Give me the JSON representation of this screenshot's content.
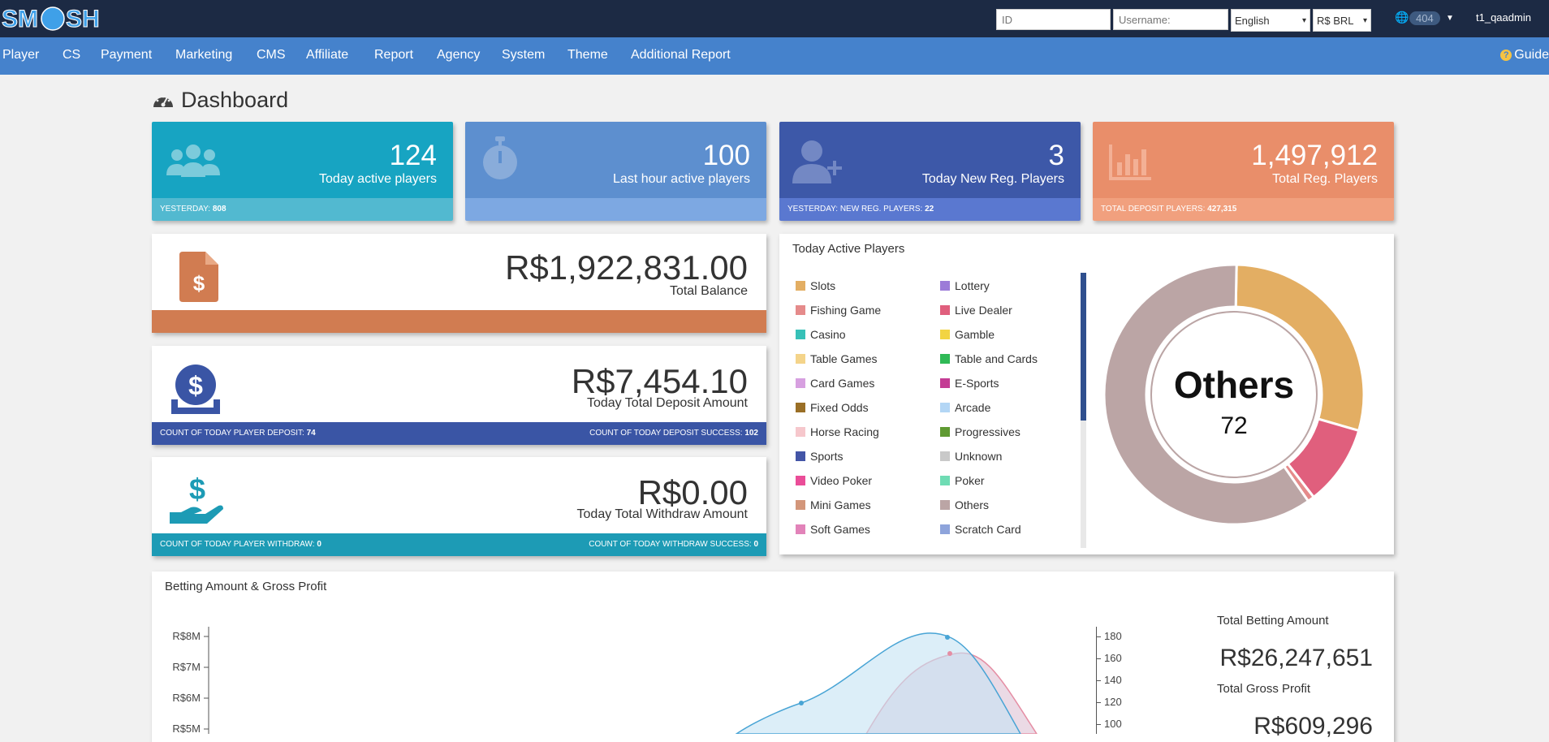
{
  "brand": {
    "logo_text": "SMASH"
  },
  "topbar": {
    "id_placeholder": "ID",
    "username_placeholder": "Username:",
    "language": "English",
    "currency": "R$ BRL",
    "notification_count": "404",
    "user": "t1_qaadmin"
  },
  "nav": {
    "items": [
      "Player",
      "CS",
      "Payment",
      "Marketing",
      "CMS",
      "Affiliate",
      "Report",
      "Agency",
      "System",
      "Theme",
      "Additional Report"
    ],
    "guide": "Guide"
  },
  "page_title": "Dashboard",
  "stats": [
    {
      "value": "124",
      "label": "Today active players",
      "footer_label": "YESTERDAY:",
      "footer_value": "808",
      "icon": "users-icon",
      "color_top": "#17a4c2",
      "color_bot": "#52b9d0"
    },
    {
      "value": "100",
      "label": "Last hour active players",
      "footer_label": "",
      "footer_value": "",
      "icon": "stopwatch-icon",
      "color_top": "#5d8fcf",
      "color_bot": "#7da8e2"
    },
    {
      "value": "3",
      "label": "Today New Reg. Players",
      "footer_label": "YESTERDAY: NEW REG. PLAYERS:",
      "footer_value": "22",
      "icon": "user-plus-icon",
      "color_top": "#3d58a8",
      "color_bot": "#5a78d0"
    },
    {
      "value": "1,497,912",
      "label": "Total Reg. Players",
      "footer_label": "TOTAL DEPOSIT PLAYERS:",
      "footer_value": "427,315",
      "icon": "bar-chart-icon",
      "color_top": "#e98e6a",
      "color_bot": "#f1a07e"
    }
  ],
  "balance": {
    "amount": "R$1,922,831.00",
    "label": "Total Balance",
    "color": "#d17c51"
  },
  "deposit": {
    "amount": "R$7,454.10",
    "label": "Today Total Deposit Amount",
    "left_label": "COUNT OF TODAY PLAYER DEPOSIT:",
    "left_value": "74",
    "right_label": "COUNT OF TODAY DEPOSIT SUCCESS:",
    "right_value": "102",
    "color": "#3a55a5"
  },
  "withdraw": {
    "amount": "R$0.00",
    "label": "Today Total Withdraw Amount",
    "left_label": "COUNT OF TODAY PLAYER WITHDRAW:",
    "left_value": "0",
    "right_label": "COUNT OF TODAY WITHDRAW SUCCESS:",
    "right_value": "0",
    "color": "#1d9bb5"
  },
  "active_players": {
    "title": "Today Active Players",
    "legend": [
      {
        "name": "Slots",
        "color": "#e3ae63"
      },
      {
        "name": "Lottery",
        "color": "#9c7bd8"
      },
      {
        "name": "Fishing Game",
        "color": "#e58b8b"
      },
      {
        "name": "Live Dealer",
        "color": "#e05f7d"
      },
      {
        "name": "Casino",
        "color": "#37c1b8"
      },
      {
        "name": "Gamble",
        "color": "#f2d442"
      },
      {
        "name": "Table Games",
        "color": "#f4d48a"
      },
      {
        "name": "Table and Cards",
        "color": "#2fba56"
      },
      {
        "name": "Card Games",
        "color": "#d7a0e0"
      },
      {
        "name": "E-Sports",
        "color": "#c43c94"
      },
      {
        "name": "Fixed Odds",
        "color": "#9a6f26"
      },
      {
        "name": "Arcade",
        "color": "#b3d6f5"
      },
      {
        "name": "Horse Racing",
        "color": "#f6c7cc"
      },
      {
        "name": "Progressives",
        "color": "#5f9a32"
      },
      {
        "name": "Sports",
        "color": "#4355a6"
      },
      {
        "name": "Unknown",
        "color": "#c9c9c9"
      },
      {
        "name": "Video Poker",
        "color": "#ea4d98"
      },
      {
        "name": "Poker",
        "color": "#6fdcb4"
      },
      {
        "name": "Mini Games",
        "color": "#d3967a"
      },
      {
        "name": "Others",
        "color": "#bba5a5"
      },
      {
        "name": "Soft Games",
        "color": "#e283b9"
      },
      {
        "name": "Scratch Card",
        "color": "#8ea4db"
      }
    ],
    "center_label": "Others",
    "center_value": "72"
  },
  "chart_data": [
    {
      "type": "pie",
      "title": "Today Active Players",
      "slices": [
        {
          "name": "Slots",
          "value": 35,
          "color": "#e3ae63"
        },
        {
          "name": "Live Dealer",
          "value": 12,
          "color": "#e05f7d"
        },
        {
          "name": "Fishing Game",
          "value": 1,
          "color": "#e58b8b"
        },
        {
          "name": "Others",
          "value": 72,
          "color": "#bba5a5"
        }
      ]
    },
    {
      "type": "area",
      "title": "Betting Amount & Gross Profit",
      "y_left_ticks": [
        "R$5M",
        "R$6M",
        "R$7M",
        "R$8M"
      ],
      "y_right_ticks": [
        "100",
        "120",
        "140",
        "160",
        "180"
      ]
    }
  ],
  "betting": {
    "title": "Betting Amount & Gross Profit",
    "total_betting_label": "Total Betting Amount",
    "total_betting_value": "R$26,247,651",
    "total_profit_label": "Total Gross Profit",
    "total_profit_value": "R$609,296"
  }
}
